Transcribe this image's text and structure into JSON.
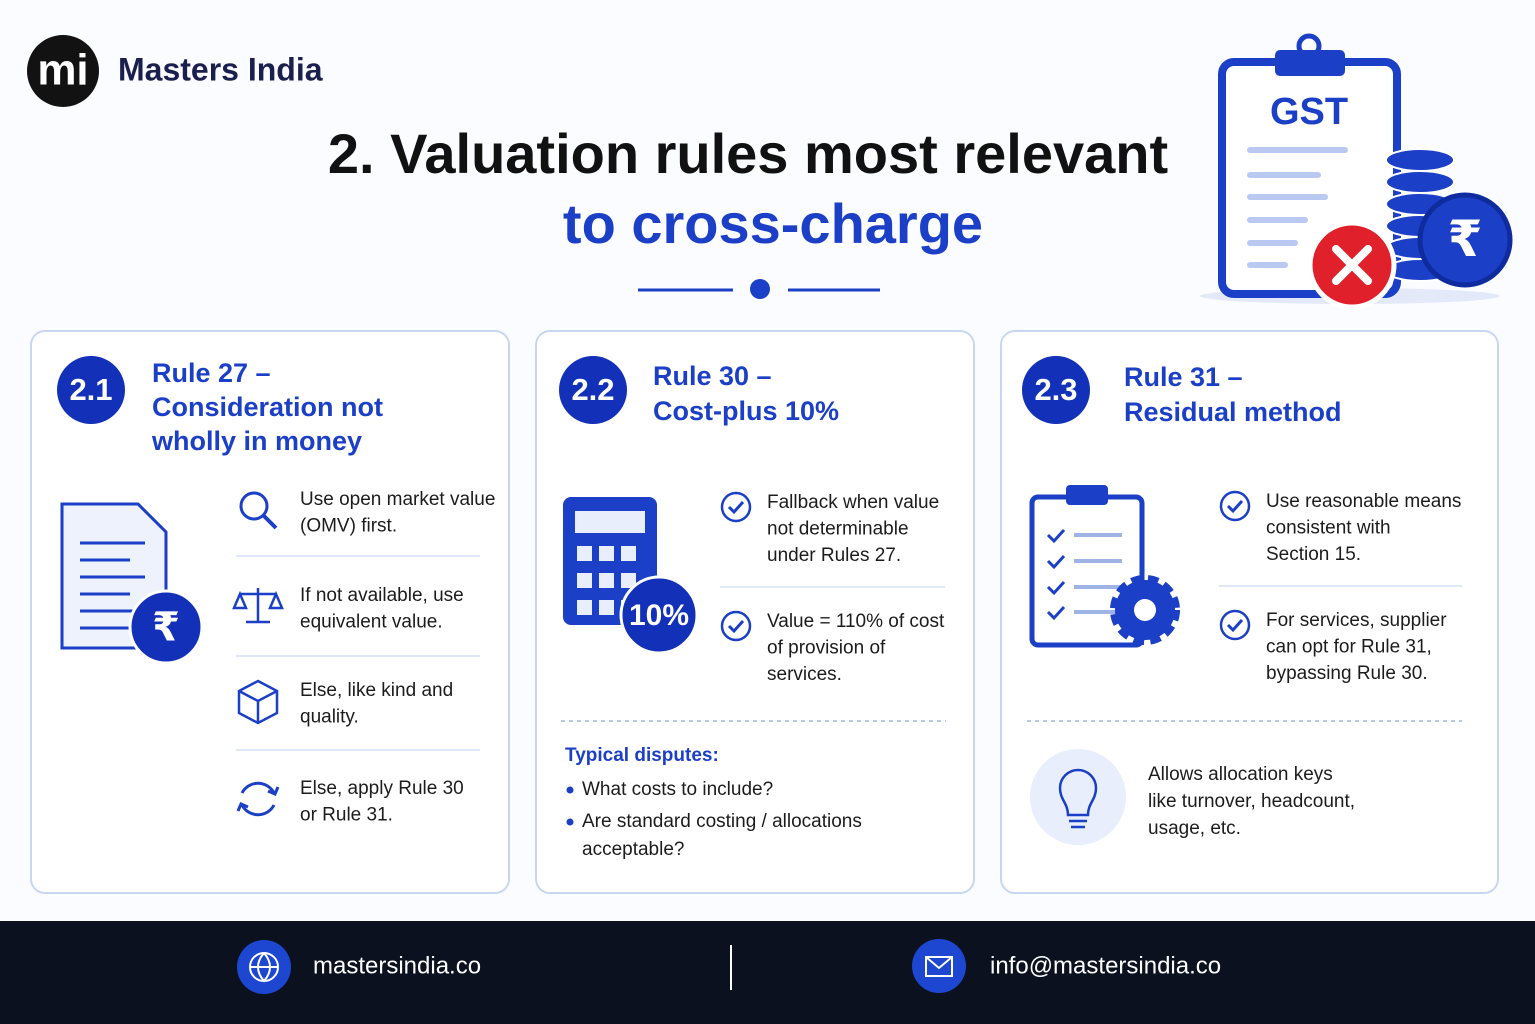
{
  "header": {
    "logo_mark": "mi",
    "brand": "Masters India",
    "title_line_1": "2. Valuation rules most relevant",
    "title_line_2": "to cross-charge"
  },
  "illustration": {
    "label": "GST",
    "currency": "₹"
  },
  "cards": [
    {
      "number": "2.1",
      "title": [
        "Rule 27 –",
        "Consideration not",
        "wholly in money"
      ],
      "badge": "₹",
      "points": [
        [
          "Use open market value",
          "(OMV) first."
        ],
        [
          "If not available, use",
          "equivalent value."
        ],
        [
          "Else, like kind and",
          "quality."
        ],
        [
          "Else, apply Rule 30",
          "or Rule 31."
        ]
      ]
    },
    {
      "number": "2.2",
      "title": [
        "Rule 30 –",
        "Cost-plus 10%"
      ],
      "badge": "10%",
      "points": [
        [
          "Fallback when value",
          "not determinable",
          "under Rules 27."
        ],
        [
          "Value = 110% of cost",
          "of provision of",
          "services."
        ]
      ],
      "disputes": {
        "heading": "Typical disputes:",
        "items": [
          [
            "What costs to include?"
          ],
          [
            "Are standard costing / allocations",
            "acceptable?"
          ]
        ]
      }
    },
    {
      "number": "2.3",
      "title": [
        "Rule 31 –",
        "Residual method"
      ],
      "points": [
        [
          "Use reasonable means",
          "consistent with",
          "Section 15."
        ],
        [
          "For services, supplier",
          "can opt for Rule 31,",
          "bypassing Rule 30."
        ]
      ],
      "note": [
        "Allows allocation keys",
        "like turnover, headcount,",
        "usage, etc."
      ]
    }
  ],
  "footer": {
    "website": "mastersindia.co",
    "email": "info@mastersindia.co"
  }
}
